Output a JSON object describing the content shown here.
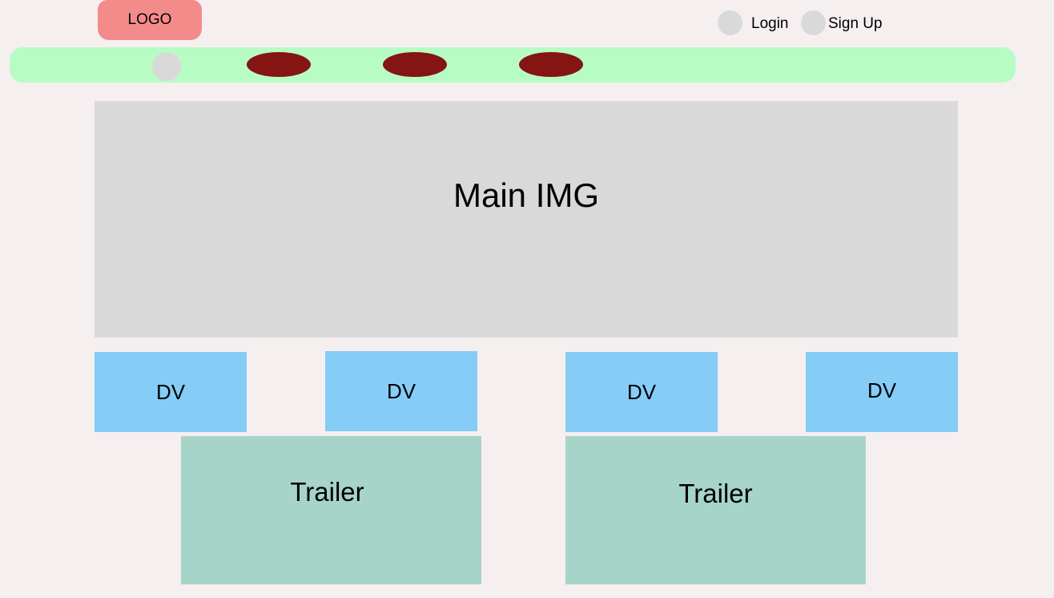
{
  "header": {
    "logo_label": "LOGO",
    "auth": {
      "login_label": "Login",
      "signup_label": "Sign Up"
    }
  },
  "nav": {
    "items": [
      {
        "icon": "circle-placeholder"
      },
      {
        "icon": "menu-pill"
      },
      {
        "icon": "menu-pill"
      },
      {
        "icon": "menu-pill"
      }
    ]
  },
  "main": {
    "hero_label": "Main IMG",
    "dv_cards": [
      {
        "label": "DV"
      },
      {
        "label": "DV"
      },
      {
        "label": "DV"
      },
      {
        "label": "DV"
      }
    ],
    "trailers": [
      {
        "label": "Trailer"
      },
      {
        "label": "Trailer"
      }
    ]
  },
  "colors": {
    "background": "#f6eff0",
    "logo": "#f48b8b",
    "navbar": "#b7fcc4",
    "nav_pill": "#851414",
    "placeholder_gray": "#d9d9d9",
    "dv_card": "#85ccf7",
    "trailer": "#a6d4c9"
  }
}
